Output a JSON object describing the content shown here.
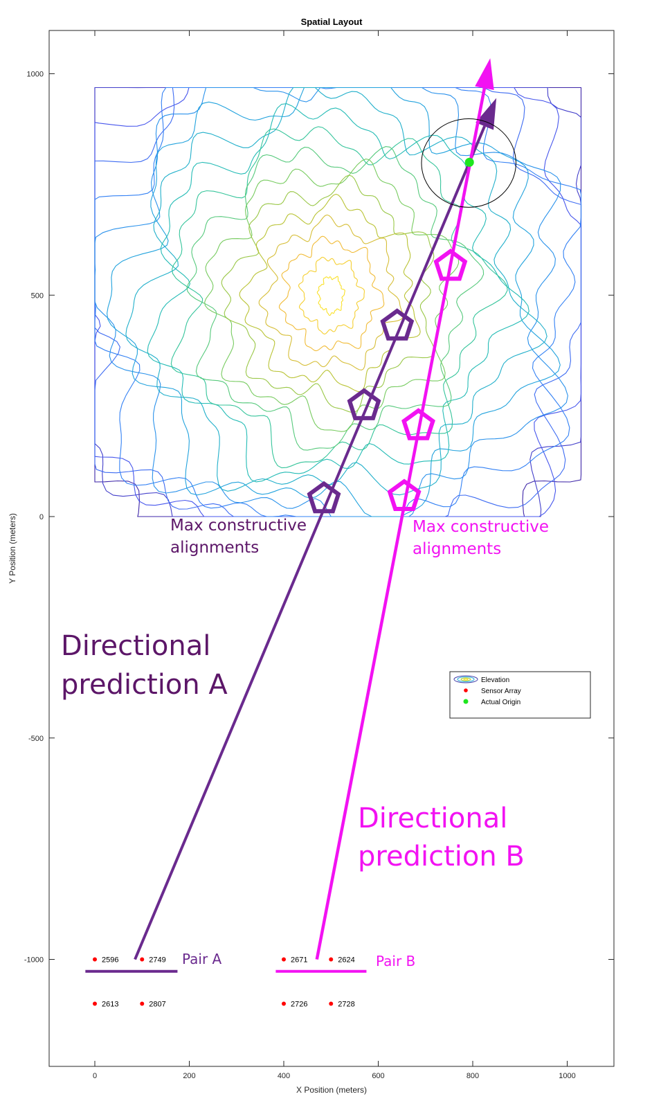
{
  "chart_data": {
    "type": "scatter",
    "title": "Spatial Layout",
    "xlabel": "X Position (meters)",
    "ylabel": "Y Position (meters)",
    "xlim": [
      -100,
      1100
    ],
    "ylim": [
      -1200,
      1100
    ],
    "xticks": [
      0,
      200,
      400,
      600,
      800,
      1000
    ],
    "yticks": [
      -1000,
      -500,
      0,
      500,
      1000
    ],
    "grid": false,
    "legend": {
      "placement": "right-middle",
      "entries": [
        "Elevation",
        "Sensor Array",
        "Actual Origin"
      ]
    },
    "elevation_contours": {
      "extent_x": [
        0,
        1000
      ],
      "extent_y": [
        0,
        1000
      ],
      "peak": [
        500,
        500
      ],
      "levels": 18,
      "colormap": "parula"
    },
    "sensors": [
      {
        "id": "2596",
        "x": 0,
        "y": -1000
      },
      {
        "id": "2749",
        "x": 100,
        "y": -1000
      },
      {
        "id": "2613",
        "x": 0,
        "y": -1100
      },
      {
        "id": "2807",
        "x": 100,
        "y": -1100
      },
      {
        "id": "2671",
        "x": 400,
        "y": -1000
      },
      {
        "id": "2624",
        "x": 500,
        "y": -1000
      },
      {
        "id": "2726",
        "x": 400,
        "y": -1100
      },
      {
        "id": "2728",
        "x": 500,
        "y": -1100
      }
    ],
    "actual_origin": {
      "x": 793,
      "y": 800
    },
    "origin_circle_radius": 100,
    "prediction_a": {
      "start": [
        85,
        -1000
      ],
      "end": [
        850,
        945
      ],
      "pentagons": [
        [
          485,
          40
        ],
        [
          570,
          250
        ],
        [
          640,
          430
        ]
      ]
    },
    "prediction_b": {
      "start": [
        470,
        -1000
      ],
      "end": [
        837,
        1035
      ],
      "pentagons": [
        [
          655,
          45
        ],
        [
          685,
          205
        ],
        [
          753,
          565
        ]
      ]
    },
    "pair_a_bar": [
      -20,
      175,
      -1027
    ],
    "pair_b_bar": [
      383,
      575,
      -1027
    ]
  },
  "annotations": {
    "max_alignments_a": [
      "Max constructive",
      "alignments"
    ],
    "max_alignments_b": [
      "Max constructive",
      "alignments"
    ],
    "prediction_a": [
      "Directional",
      "prediction A"
    ],
    "prediction_b": [
      "Directional",
      "prediction B"
    ],
    "pair_a": "Pair A",
    "pair_b": "Pair B"
  },
  "colors": {
    "purple": "#6a2a8e",
    "magenta": "#f212f2",
    "annot_purple": "#5c1668",
    "sensor": "#ff0000",
    "origin": "#1ee61e"
  }
}
